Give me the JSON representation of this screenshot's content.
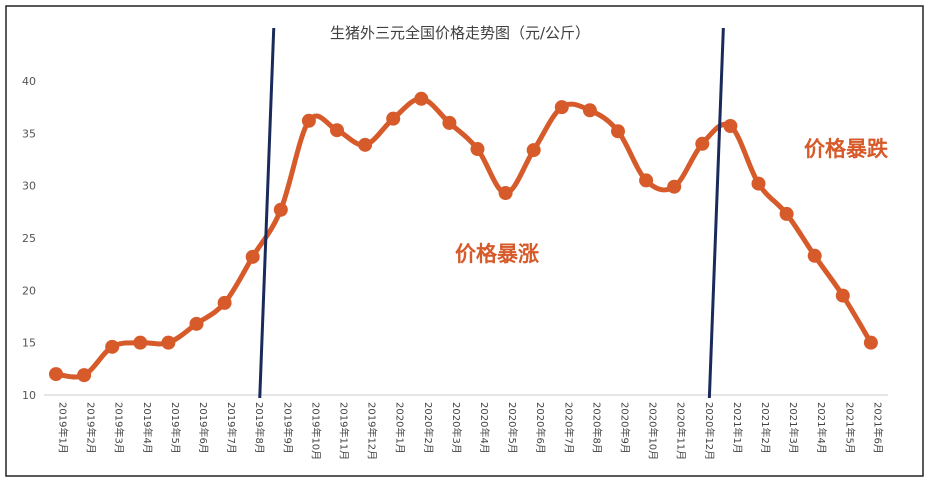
{
  "chart_data": {
    "type": "line",
    "title": "生猪外三元全国价格走势图（元/公斤）",
    "xlabel": "",
    "ylabel": "",
    "ylim": [
      10,
      40
    ],
    "yticks": [
      10,
      15,
      20,
      25,
      30,
      35,
      40
    ],
    "grid": false,
    "categories": [
      "2019年1月",
      "2019年2月",
      "2019年3月",
      "2019年4月",
      "2019年5月",
      "2019年6月",
      "2019年7月",
      "2019年8月",
      "2019年9月",
      "2019年10月",
      "2019年11月",
      "2019年12月",
      "2020年1月",
      "2020年2月",
      "2020年3月",
      "2020年4月",
      "2020年5月",
      "2020年6月",
      "2020年7月",
      "2020年8月",
      "2020年9月",
      "2020年10月",
      "2020年11月",
      "2020年12月",
      "2021年1月",
      "2021年2月",
      "2021年3月",
      "2021年4月",
      "2021年5月",
      "2021年6月"
    ],
    "series": [
      {
        "values": [
          12.0,
          11.9,
          14.6,
          15.0,
          15.0,
          16.8,
          18.8,
          23.2,
          27.7,
          36.2,
          35.3,
          33.9,
          36.4,
          38.3,
          36.0,
          33.5,
          29.3,
          33.4,
          37.5,
          37.2,
          35.2,
          30.5,
          29.9,
          34.0,
          35.7,
          30.2,
          27.3,
          23.3,
          19.5,
          15.0
        ],
        "color": "#d65a2a"
      }
    ],
    "annotations": [
      {
        "text": "价格暴涨",
        "color": "#d65a2a"
      },
      {
        "text": "价格暴跌",
        "color": "#d65a2a"
      }
    ],
    "divider_lines": [
      {
        "between": [
          "2019年8月",
          "2019年9月"
        ],
        "color": "#1a2a5a"
      },
      {
        "between": [
          "2020年12月",
          "2021年1月"
        ],
        "color": "#1a2a5a"
      }
    ]
  }
}
